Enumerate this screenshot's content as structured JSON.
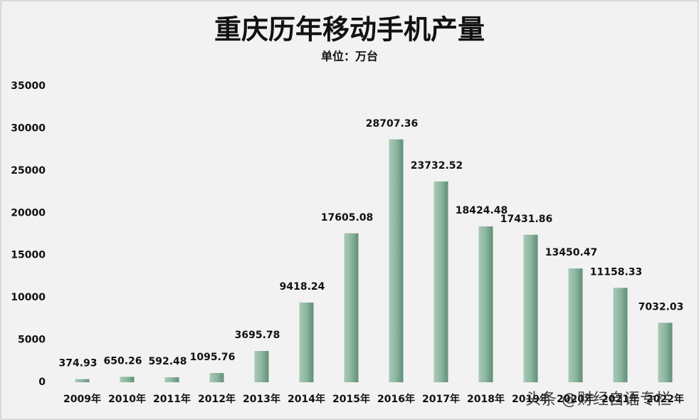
{
  "chart_data": {
    "type": "bar",
    "title": "重庆历年移动手机产量",
    "subtitle": "单位：万台",
    "categories": [
      "2009年",
      "2010年",
      "2011年",
      "2012年",
      "2013年",
      "2014年",
      "2015年",
      "2016年",
      "2017年",
      "2018年",
      "2019年",
      "2020年",
      "2021年",
      "2022年"
    ],
    "values": [
      374.93,
      650.26,
      592.48,
      1095.76,
      3695.78,
      9418.24,
      17605.08,
      28707.36,
      23732.52,
      18424.48,
      17431.86,
      13450.47,
      11158.33,
      7032.03
    ],
    "color": "#8db59f",
    "ylim": [
      0,
      35000
    ],
    "yticks": [
      0,
      5000,
      10000,
      15000,
      20000,
      25000,
      30000,
      35000
    ],
    "grid": false,
    "watermark": "头条 @财经自语专栏"
  }
}
